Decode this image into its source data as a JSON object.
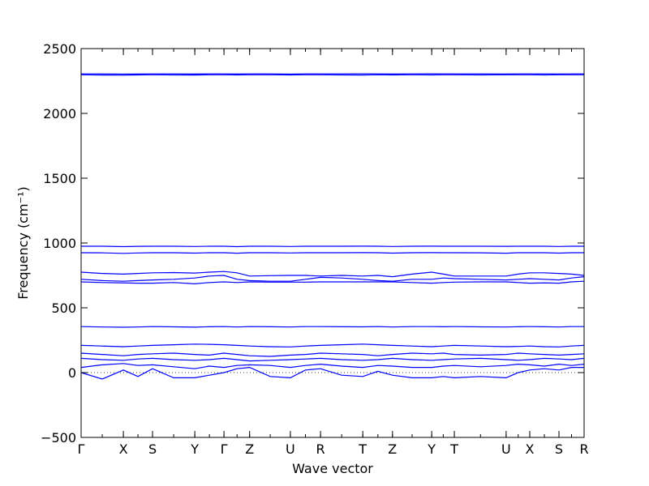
{
  "chart_data": {
    "type": "line",
    "x_label": "Wave vector",
    "y_label": "Frequency (cm⁻¹)",
    "color": "#0000ff",
    "xlim": [
      0,
      1
    ],
    "ylim": [
      -500,
      2500
    ],
    "yticks": [
      {
        "value": -500,
        "label": "−500"
      },
      0,
      500,
      1000,
      1500,
      2000,
      2500
    ],
    "xticks": [
      {
        "value": 0,
        "label": "Γ"
      },
      {
        "value": 0.084,
        "label": "X"
      },
      {
        "value": 0.142,
        "label": "S"
      },
      {
        "value": 0.226,
        "label": "Y"
      },
      {
        "value": 0.284,
        "label": "Γ"
      },
      {
        "value": 0.335,
        "label": "Z"
      },
      {
        "value": 0.416,
        "label": "U"
      },
      {
        "value": 0.476,
        "label": "R"
      },
      {
        "value": 0.56,
        "label": "T"
      },
      {
        "value": 0.619,
        "label": "Z"
      },
      {
        "value": 0.697,
        "label": "Y"
      },
      {
        "value": 0.742,
        "label": "T"
      },
      {
        "value": 0.845,
        "label": "U"
      },
      {
        "value": 0.892,
        "label": "X"
      },
      {
        "value": 0.95,
        "label": "S"
      },
      {
        "value": 1,
        "label": "R"
      }
    ],
    "x": [
      0,
      0.042,
      0.084,
      0.113,
      0.142,
      0.184,
      0.226,
      0.255,
      0.284,
      0.31,
      0.335,
      0.376,
      0.416,
      0.446,
      0.476,
      0.518,
      0.56,
      0.59,
      0.619,
      0.658,
      0.697,
      0.72,
      0.742,
      0.794,
      0.845,
      0.869,
      0.892,
      0.921,
      0.95,
      0.975,
      1
    ],
    "series": [
      {
        "values": [
          2305,
          2305,
          2303,
          2304,
          2305,
          2305,
          2304,
          2305,
          2305,
          2304,
          2305,
          2305,
          2303,
          2305,
          2305,
          2305,
          2306,
          2305,
          2304,
          2305,
          2306,
          2305,
          2305,
          2305,
          2304,
          2305,
          2305,
          2305,
          2304,
          2305,
          2305
        ]
      },
      {
        "values": [
          2298,
          2296,
          2295,
          2297,
          2298,
          2297,
          2296,
          2298,
          2298,
          2297,
          2298,
          2298,
          2297,
          2298,
          2298,
          2297,
          2296,
          2298,
          2297,
          2298,
          2297,
          2298,
          2298,
          2297,
          2298,
          2298,
          2298,
          2297,
          2298,
          2298,
          2298
        ]
      },
      {
        "values": [
          975,
          975,
          972,
          974,
          975,
          975,
          973,
          975,
          975,
          972,
          975,
          975,
          973,
          975,
          975,
          975,
          976,
          975,
          973,
          975,
          976,
          975,
          975,
          975,
          974,
          975,
          975,
          975,
          973,
          975,
          975
        ]
      },
      {
        "values": [
          925,
          924,
          920,
          923,
          925,
          925,
          922,
          925,
          925,
          921,
          925,
          925,
          923,
          925,
          925,
          925,
          926,
          925,
          922,
          925,
          926,
          925,
          925,
          924,
          921,
          925,
          925,
          925,
          922,
          925,
          925
        ]
      },
      {
        "values": [
          775,
          765,
          760,
          765,
          770,
          772,
          768,
          775,
          780,
          770,
          745,
          748,
          750,
          750,
          745,
          750,
          745,
          750,
          740,
          760,
          775,
          760,
          745,
          745,
          745,
          760,
          770,
          770,
          765,
          760,
          750
        ]
      },
      {
        "values": [
          720,
          710,
          705,
          710,
          715,
          720,
          730,
          745,
          750,
          720,
          710,
          705,
          705,
          720,
          735,
          730,
          720,
          710,
          705,
          720,
          720,
          730,
          725,
          720,
          715,
          720,
          725,
          720,
          715,
          730,
          740
        ]
      },
      {
        "values": [
          700,
          695,
          692,
          690,
          690,
          695,
          685,
          695,
          700,
          695,
          700,
          698,
          698,
          698,
          700,
          700,
          700,
          700,
          700,
          695,
          690,
          695,
          698,
          700,
          700,
          695,
          690,
          692,
          690,
          700,
          705
        ]
      },
      {
        "values": [
          355,
          352,
          350,
          352,
          355,
          353,
          351,
          354,
          355,
          352,
          355,
          354,
          352,
          355,
          355,
          354,
          353,
          355,
          352,
          355,
          355,
          354,
          355,
          353,
          352,
          354,
          355,
          354,
          352,
          355,
          355
        ]
      },
      {
        "values": [
          210,
          205,
          200,
          205,
          210,
          215,
          220,
          218,
          215,
          210,
          205,
          200,
          198,
          205,
          210,
          215,
          220,
          215,
          210,
          205,
          200,
          205,
          210,
          205,
          200,
          202,
          205,
          200,
          198,
          205,
          210
        ]
      },
      {
        "values": [
          150,
          140,
          130,
          140,
          145,
          150,
          140,
          135,
          150,
          140,
          130,
          125,
          135,
          140,
          150,
          145,
          140,
          130,
          140,
          150,
          145,
          150,
          140,
          135,
          140,
          150,
          145,
          140,
          135,
          140,
          145
        ]
      },
      {
        "values": [
          110,
          100,
          95,
          105,
          110,
          100,
          95,
          100,
          110,
          100,
          90,
          95,
          100,
          105,
          110,
          100,
          95,
          100,
          110,
          100,
          95,
          100,
          105,
          110,
          100,
          95,
          100,
          110,
          105,
          100,
          110
        ]
      },
      {
        "values": [
          40,
          60,
          70,
          55,
          60,
          45,
          30,
          50,
          40,
          55,
          60,
          55,
          40,
          55,
          65,
          50,
          40,
          55,
          50,
          40,
          40,
          50,
          55,
          45,
          55,
          65,
          60,
          50,
          65,
          55,
          65
        ]
      },
      {
        "values": [
          0,
          -50,
          20,
          -30,
          30,
          -40,
          -40,
          -20,
          0,
          30,
          40,
          -30,
          -40,
          20,
          30,
          -20,
          -30,
          10,
          -20,
          -40,
          -40,
          -30,
          -40,
          -30,
          -40,
          0,
          20,
          30,
          20,
          40,
          40
        ]
      }
    ]
  }
}
